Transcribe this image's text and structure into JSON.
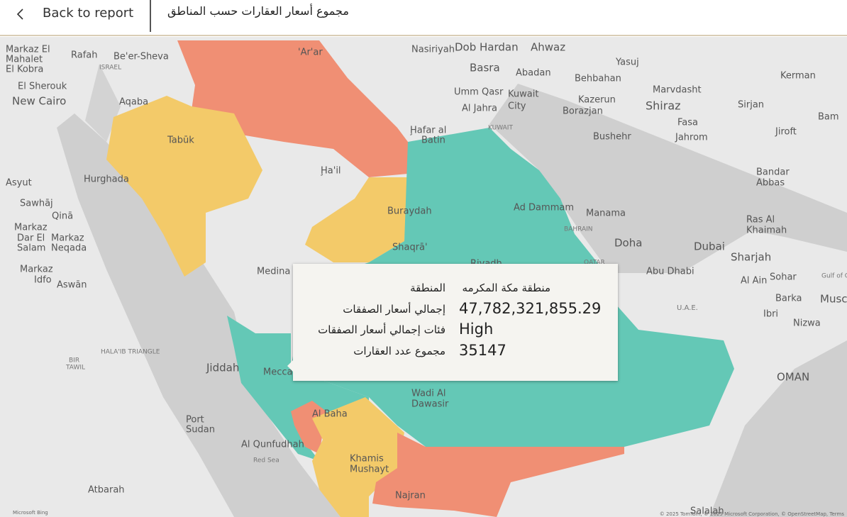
{
  "header": {
    "back_button": "Back to report",
    "title": "مجموع أسعار العقارات حسب المناطق"
  },
  "map": {
    "labels": [
      "Markaz El",
      "Mahalet",
      "El Kobra",
      "Rafah",
      "Be'er-Sheva",
      "ISRAEL",
      "Aqaba",
      "El Sherouk",
      "New Cairo",
      "'Ar'ar",
      "Nasiriyah",
      "Dob Hardan",
      "Ahwaz",
      "Basra",
      "Yasuj",
      "Kerman",
      "Abadan",
      "Behbahan",
      "Umm Qasr",
      "Kuwait",
      "City",
      "Marvdasht",
      "Al Jahra",
      "Kazerun",
      "Shiraz",
      "Sirjan",
      "Bam",
      "Borazjan",
      "KUWAIT",
      "Fasa",
      "Ḩafar al",
      "Batin",
      "Bushehr",
      "Jahrom",
      "Jiroft",
      "Tabūk",
      "Asyut",
      "Hurghada",
      "Ḩa'il",
      "Bandar",
      "Abbas",
      "Sawhāj",
      "Qinā",
      "Buraydah",
      "Ad Dammam",
      "Manama",
      "Ras Al",
      "Khaimah",
      "BAHRAIN",
      "Markaz",
      "Dar El",
      "Salam",
      "Markaz",
      "Neqada",
      "Shaqrā'",
      "Doha",
      "Dubai",
      "Sharjah",
      "Riyadh",
      "QATAR",
      "Abu Dhabi",
      "Markaz",
      "Idfo",
      "Aswān",
      "Medina",
      "Al Ain",
      "Sohar",
      "Gulf of O",
      "U.A.E.",
      "Barka",
      "Musc",
      "Ibri",
      "Nizwa",
      "HALA'IB TRIANGLE",
      "BIR",
      "TAWIL",
      "Jiddah",
      "Mecca",
      "OMAN",
      "Wadi Al",
      "Dawasir",
      "Al Baha",
      "Port",
      "Sudan",
      "Al Qunfudhah",
      "Red Sea",
      "Khamis",
      "Mushayt",
      "Atbarah",
      "Najran",
      "Salalah"
    ],
    "footer_logo": "Microsoft Bing",
    "attribution": "© 2025 TomTom, © 2025 Microsoft Corporation, © OpenStreetMap, Terms"
  },
  "tooltip": {
    "rows": [
      {
        "label": "المنطقة",
        "value": "منطقة مكة المكرمه"
      },
      {
        "label": "إجمالي أسعار الصفقات",
        "value": "47,782,321,855.29"
      },
      {
        "label": "فئات إجمالي أسعار الصفقات",
        "value": "High"
      },
      {
        "label": "مجموع عدد العقارات",
        "value": 35147
      }
    ]
  }
}
